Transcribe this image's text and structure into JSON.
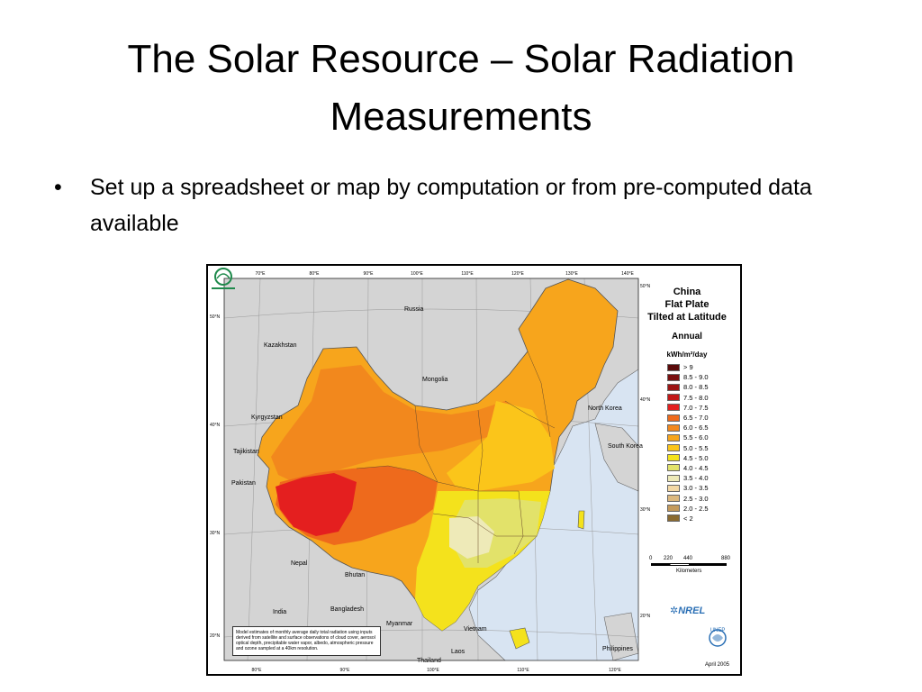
{
  "slide": {
    "title": "The Solar Resource – Solar Radiation Measurements",
    "bullet": "Set up a spreadsheet or map by computation or from pre-computed data available"
  },
  "map": {
    "legend_title": [
      "China",
      "Flat Plate",
      "Tilted at Latitude"
    ],
    "period": "Annual",
    "units": "kWh/m²/day",
    "classes": [
      {
        "label": "> 9",
        "color": "#5a0a0a"
      },
      {
        "label": "8.5 - 9.0",
        "color": "#7a0f0f"
      },
      {
        "label": "8.0 - 8.5",
        "color": "#9c1414"
      },
      {
        "label": "7.5 - 8.0",
        "color": "#c21818"
      },
      {
        "label": "7.0 - 7.5",
        "color": "#e41f1f"
      },
      {
        "label": "6.5 - 7.0",
        "color": "#ee6a1c"
      },
      {
        "label": "6.0 - 6.5",
        "color": "#f2881d"
      },
      {
        "label": "5.5 - 6.0",
        "color": "#f7a51c"
      },
      {
        "label": "5.0 - 5.5",
        "color": "#fbc51a"
      },
      {
        "label": "4.5 - 5.0",
        "color": "#f4e21c"
      },
      {
        "label": "4.0 - 4.5",
        "color": "#e2e26a"
      },
      {
        "label": "3.5 - 4.0",
        "color": "#eeeab8"
      },
      {
        "label": "3.0 - 3.5",
        "color": "#f3d8a5"
      },
      {
        "label": "2.5 - 3.0",
        "color": "#dcb87e"
      },
      {
        "label": "2.0 - 2.5",
        "color": "#c49a5c"
      },
      {
        "label": "< 2",
        "color": "#8a6a30"
      }
    ],
    "scale_ticks": [
      "0",
      "220",
      "440",
      "880"
    ],
    "scale_unit": "Kilometers",
    "top_lons": [
      "70°E",
      "80°E",
      "90°E",
      "100°E",
      "110°E",
      "120°E",
      "130°E",
      "140°E"
    ],
    "bottom_lons": [
      "80°E",
      "90°E",
      "100°E",
      "110°E",
      "120°E"
    ],
    "left_lats": [
      "50°N",
      "40°N",
      "30°N",
      "20°N"
    ],
    "right_lats": [
      "50°N",
      "40°N",
      "30°N",
      "20°N"
    ],
    "countries": [
      "Russia",
      "Kazakhstan",
      "Mongolia",
      "Kyrgyzstan",
      "Tajikistan",
      "Pakistan",
      "Nepal",
      "Bhutan",
      "India",
      "Bangladesh",
      "Myanmar",
      "Vietnam",
      "Laos",
      "Thailand",
      "Philippines",
      "North Korea",
      "South Korea"
    ],
    "logos": {
      "nrel": "NREL",
      "unep": "UNEP"
    },
    "date": "April 2005",
    "note": "Model estimates of monthly average daily total radiation using inputs derived from satellite and surface observations of cloud cover, aerosol optical depth, precipitable water vapor, albedo, atmospheric pressure and ozone sampled at a 40km resolution.",
    "colors": {
      "land": "#d4d4d4",
      "water": "#d8e4f2",
      "border": "#555555"
    }
  }
}
